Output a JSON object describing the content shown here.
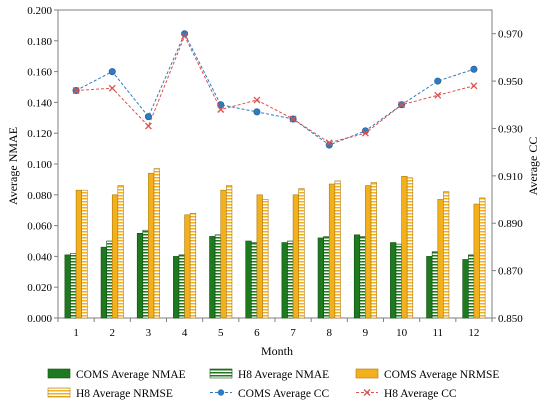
{
  "chart_data": {
    "type": "bar",
    "title": "",
    "xlabel": "Month",
    "ylabel": "Average NMAE",
    "y2label": "Average CC",
    "categories": [
      "1",
      "2",
      "3",
      "4",
      "5",
      "6",
      "7",
      "8",
      "9",
      "10",
      "11",
      "12"
    ],
    "ylim": [
      0,
      0.2
    ],
    "y_ticks": [
      "0.000",
      "0.020",
      "0.040",
      "0.060",
      "0.080",
      "0.100",
      "0.120",
      "0.140",
      "0.160",
      "0.180",
      "0.200"
    ],
    "y2lim": [
      0.85,
      0.98
    ],
    "y2_ticks": [
      "0.850",
      "0.870",
      "0.890",
      "0.910",
      "0.930",
      "0.950",
      "0.970"
    ],
    "grid": false,
    "legend_position": "bottom",
    "bar_series": [
      {
        "name": "COMS Average NMAE",
        "color": "#1f7a1f",
        "pattern": "solid",
        "values": [
          0.041,
          0.046,
          0.055,
          0.04,
          0.053,
          0.05,
          0.049,
          0.052,
          0.054,
          0.049,
          0.04,
          0.038
        ]
      },
      {
        "name": "H8 Average NMAE",
        "color": "#1f7a1f",
        "pattern": "striped",
        "values": [
          0.042,
          0.05,
          0.057,
          0.041,
          0.054,
          0.049,
          0.05,
          0.053,
          0.053,
          0.048,
          0.043,
          0.041
        ]
      },
      {
        "name": "COMS Average NRMSE",
        "color": "#f2b01e",
        "pattern": "solid",
        "values": [
          0.083,
          0.08,
          0.094,
          0.067,
          0.083,
          0.08,
          0.08,
          0.087,
          0.086,
          0.092,
          0.077,
          0.074
        ]
      },
      {
        "name": "H8 Average NRMSE",
        "color": "#f2b01e",
        "pattern": "striped",
        "values": [
          0.083,
          0.086,
          0.097,
          0.068,
          0.086,
          0.077,
          0.084,
          0.089,
          0.088,
          0.091,
          0.082,
          0.078
        ]
      }
    ],
    "line_series": [
      {
        "name": "COMS Average CC",
        "color": "#2e7bbf",
        "marker": "circle",
        "axis": "right",
        "values": [
          0.946,
          0.954,
          0.935,
          0.97,
          0.94,
          0.937,
          0.934,
          0.923,
          0.929,
          0.94,
          0.95,
          0.955
        ]
      },
      {
        "name": "H8 Average CC",
        "color": "#d9534f",
        "marker": "x",
        "axis": "right",
        "values": [
          0.946,
          0.947,
          0.931,
          0.969,
          0.938,
          0.942,
          0.934,
          0.924,
          0.928,
          0.94,
          0.944,
          0.948
        ]
      }
    ]
  }
}
